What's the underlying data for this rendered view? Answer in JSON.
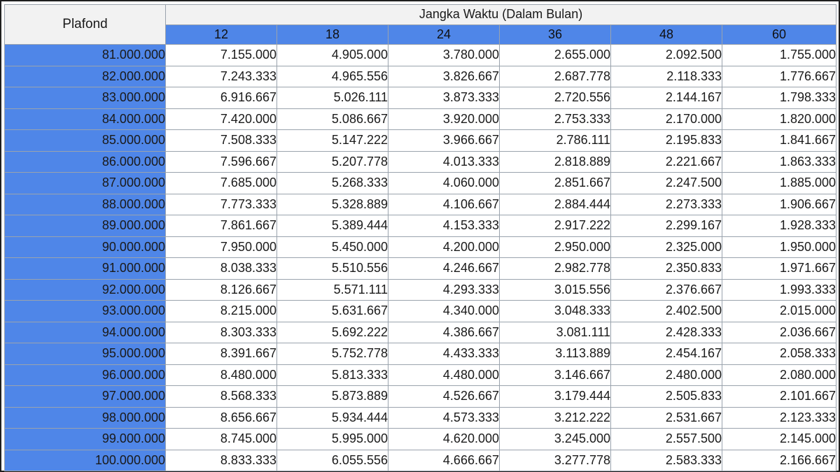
{
  "table": {
    "plafond_header": "Plafond",
    "group_header": "Jangka Waktu (Dalam Bulan)",
    "terms": [
      "12",
      "18",
      "24",
      "36",
      "48",
      "60"
    ],
    "rows": [
      {
        "plafond": "81.000.000",
        "values": [
          "7.155.000",
          "4.905.000",
          "3.780.000",
          "2.655.000",
          "2.092.500",
          "1.755.000"
        ]
      },
      {
        "plafond": "82.000.000",
        "values": [
          "7.243.333",
          "4.965.556",
          "3.826.667",
          "2.687.778",
          "2.118.333",
          "1.776.667"
        ]
      },
      {
        "plafond": "83.000.000",
        "values": [
          "6.916.667",
          "5.026.111",
          "3.873.333",
          "2.720.556",
          "2.144.167",
          "1.798.333"
        ]
      },
      {
        "plafond": "84.000.000",
        "values": [
          "7.420.000",
          "5.086.667",
          "3.920.000",
          "2.753.333",
          "2.170.000",
          "1.820.000"
        ]
      },
      {
        "plafond": "85.000.000",
        "values": [
          "7.508.333",
          "5.147.222",
          "3.966.667",
          "2.786.111",
          "2.195.833",
          "1.841.667"
        ]
      },
      {
        "plafond": "86.000.000",
        "values": [
          "7.596.667",
          "5.207.778",
          "4.013.333",
          "2.818.889",
          "2.221.667",
          "1.863.333"
        ]
      },
      {
        "plafond": "87.000.000",
        "values": [
          "7.685.000",
          "5.268.333",
          "4.060.000",
          "2.851.667",
          "2.247.500",
          "1.885.000"
        ]
      },
      {
        "plafond": "88.000.000",
        "values": [
          "7.773.333",
          "5.328.889",
          "4.106.667",
          "2.884.444",
          "2.273.333",
          "1.906.667"
        ]
      },
      {
        "plafond": "89.000.000",
        "values": [
          "7.861.667",
          "5.389.444",
          "4.153.333",
          "2.917.222",
          "2.299.167",
          "1.928.333"
        ]
      },
      {
        "plafond": "90.000.000",
        "values": [
          "7.950.000",
          "5.450.000",
          "4.200.000",
          "2.950.000",
          "2.325.000",
          "1.950.000"
        ]
      },
      {
        "plafond": "91.000.000",
        "values": [
          "8.038.333",
          "5.510.556",
          "4.246.667",
          "2.982.778",
          "2.350.833",
          "1.971.667"
        ]
      },
      {
        "plafond": "92.000.000",
        "values": [
          "8.126.667",
          "5.571.111",
          "4.293.333",
          "3.015.556",
          "2.376.667",
          "1.993.333"
        ]
      },
      {
        "plafond": "93.000.000",
        "values": [
          "8.215.000",
          "5.631.667",
          "4.340.000",
          "3.048.333",
          "2.402.500",
          "2.015.000"
        ]
      },
      {
        "plafond": "94.000.000",
        "values": [
          "8.303.333",
          "5.692.222",
          "4.386.667",
          "3.081.111",
          "2.428.333",
          "2.036.667"
        ]
      },
      {
        "plafond": "95.000.000",
        "values": [
          "8.391.667",
          "5.752.778",
          "4.433.333",
          "3.113.889",
          "2.454.167",
          "2.058.333"
        ]
      },
      {
        "plafond": "96.000.000",
        "values": [
          "8.480.000",
          "5.813.333",
          "4.480.000",
          "3.146.667",
          "2.480.000",
          "2.080.000"
        ]
      },
      {
        "plafond": "97.000.000",
        "values": [
          "8.568.333",
          "5.873.889",
          "4.526.667",
          "3.179.444",
          "2.505.833",
          "2.101.667"
        ]
      },
      {
        "plafond": "98.000.000",
        "values": [
          "8.656.667",
          "5.934.444",
          "4.573.333",
          "3.212.222",
          "2.531.667",
          "2.123.333"
        ]
      },
      {
        "plafond": "99.000.000",
        "values": [
          "8.745.000",
          "5.995.000",
          "4.620.000",
          "3.245.000",
          "2.557.500",
          "2.145.000"
        ]
      },
      {
        "plafond": "100.000.000",
        "values": [
          "8.833.333",
          "6.055.556",
          "4.666.667",
          "3.277.778",
          "2.583.333",
          "2.166.667"
        ]
      }
    ]
  },
  "colors": {
    "header_blue": "#4f86e8",
    "header_gray": "#f2f2f2",
    "grid_line": "#9aa3ad",
    "frame_border": "#1f1f1f"
  }
}
